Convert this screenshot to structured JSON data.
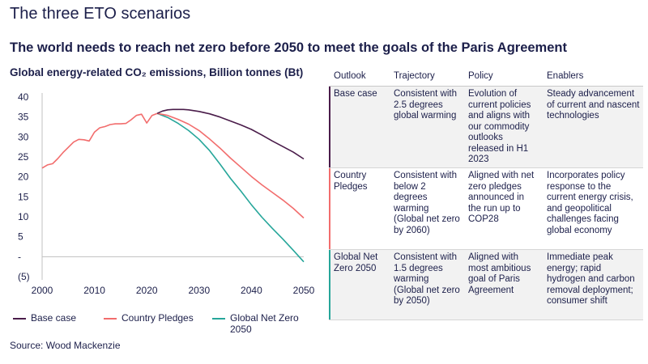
{
  "header": {
    "title": "The three ETO scenarios",
    "subtitle": "The world needs to reach net zero before 2050 to meet the goals of the Paris Agreement"
  },
  "source": "Source: Wood Mackenzie",
  "colors": {
    "base": "#4a1c4a",
    "pledges": "#f26d6d",
    "netzero": "#26a69a",
    "navy": "#1c1f4a"
  },
  "chart_data": {
    "type": "line",
    "title": "Global energy-related CO₂ emissions, Billion tonnes (Bt)",
    "x_ticks": [
      "2000",
      "2010",
      "2020",
      "2030",
      "2040",
      "2050"
    ],
    "y_ticks": [
      "(5)",
      "-",
      "5",
      "10",
      "15",
      "20",
      "25",
      "30",
      "35",
      "40"
    ],
    "xlim": [
      2000,
      2050
    ],
    "ylim": [
      -5,
      40
    ],
    "legend_position": "bottom",
    "history": {
      "name": "Base case",
      "x": [
        2000,
        2001,
        2002,
        2003,
        2004,
        2005,
        2006,
        2007,
        2008,
        2009,
        2010,
        2011,
        2012,
        2013,
        2014,
        2015,
        2016,
        2017,
        2018,
        2019,
        2020,
        2021,
        2022
      ],
      "y": [
        22.2,
        23,
        23.3,
        24.6,
        26.1,
        27.4,
        28.7,
        29.4,
        29.3,
        29,
        31.2,
        32.3,
        32.6,
        33.1,
        33.3,
        33.3,
        33.4,
        34.3,
        35.4,
        35.7,
        33.5,
        35.4,
        35.9
      ]
    },
    "series": [
      {
        "name": "Base case",
        "x": [
          2022,
          2023,
          2024,
          2025,
          2026,
          2027,
          2028,
          2029,
          2030,
          2032,
          2034,
          2036,
          2038,
          2040,
          2042,
          2044,
          2046,
          2048,
          2050
        ],
        "y": [
          35.9,
          36.5,
          36.8,
          36.9,
          36.9,
          36.9,
          36.8,
          36.6,
          36.4,
          35.8,
          35.0,
          34.0,
          33.0,
          31.9,
          30.5,
          29.0,
          27.6,
          26.2,
          24.5
        ]
      },
      {
        "name": "Country Pledges",
        "x": [
          2022,
          2024,
          2026,
          2028,
          2030,
          2032,
          2034,
          2036,
          2038,
          2040,
          2042,
          2044,
          2046,
          2048,
          2050
        ],
        "y": [
          35.9,
          35.4,
          34.4,
          33.2,
          31.6,
          29.5,
          27.2,
          24.7,
          22.4,
          20.1,
          18.0,
          16.1,
          14.2,
          12.1,
          9.7
        ]
      },
      {
        "name": "Global Net Zero 2050",
        "x": [
          2022,
          2024,
          2026,
          2028,
          2030,
          2032,
          2034,
          2036,
          2038,
          2040,
          2042,
          2044,
          2046,
          2048,
          2050
        ],
        "y": [
          35.9,
          34.9,
          33.4,
          31.6,
          29.4,
          26.6,
          23.2,
          19.6,
          16.4,
          13.0,
          9.9,
          7.1,
          4.4,
          1.6,
          -1.3
        ]
      }
    ]
  },
  "legend": [
    {
      "label": "Base case",
      "color": "#4a1c4a"
    },
    {
      "label": "Country Pledges",
      "color": "#f26d6d"
    },
    {
      "label": "Global Net Zero 2050",
      "color": "#26a69a"
    }
  ],
  "table": {
    "headers": [
      "Outlook",
      "Trajectory",
      "Policy",
      "Enablers"
    ],
    "rows": [
      {
        "color": "#4a1c4a",
        "outlook": "Base case",
        "trajectory": "Consistent with 2.5 degrees global warming",
        "policy": "Evolution of current policies and aligns with our commodity outlooks released in H1 2023",
        "enablers": "Steady advancement of current and nascent technologies"
      },
      {
        "color": "#f26d6d",
        "outlook": "Country Pledges",
        "trajectory": "Consistent with below 2 degrees warming (Global net zero by 2060)",
        "policy": "Aligned with net zero pledges announced in the run up to COP28",
        "enablers": "Incorporates policy response to the current energy crisis, and geopolitical challenges facing global economy"
      },
      {
        "color": "#26a69a",
        "outlook": "Global Net Zero 2050",
        "trajectory": "Consistent with 1.5 degrees warming (Global net zero by 2050)",
        "policy": "Aligned with most ambitious goal of Paris Agreement",
        "enablers": "Immediate peak energy; rapid hydrogen and carbon removal deployment; consumer shift"
      }
    ]
  }
}
